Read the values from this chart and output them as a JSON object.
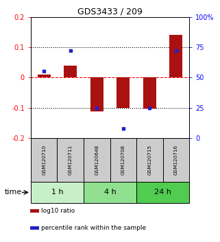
{
  "title": "GDS3433 / 209",
  "samples": [
    "GSM120710",
    "GSM120711",
    "GSM120648",
    "GSM120708",
    "GSM120715",
    "GSM120716"
  ],
  "log10_ratio": [
    0.01,
    0.04,
    -0.113,
    -0.1,
    -0.103,
    0.14
  ],
  "percentile_rank": [
    55,
    72,
    25,
    8,
    25,
    72
  ],
  "time_groups": [
    {
      "label": "1 h",
      "spans": [
        0,
        2
      ],
      "color": "#c8f0c8"
    },
    {
      "label": "4 h",
      "spans": [
        2,
        4
      ],
      "color": "#90e090"
    },
    {
      "label": "24 h",
      "spans": [
        4,
        6
      ],
      "color": "#50cc50"
    }
  ],
  "bar_color": "#aa1111",
  "dot_color": "#2222cc",
  "ylim_left": [
    -0.2,
    0.2
  ],
  "ylim_right": [
    0,
    100
  ],
  "yticks_left": [
    -0.2,
    -0.1,
    0.0,
    0.1,
    0.2
  ],
  "yticks_right": [
    0,
    25,
    50,
    75,
    100
  ],
  "ytick_labels_left": [
    "-0.2",
    "-0.1",
    "0",
    "0.1",
    "0.2"
  ],
  "ytick_labels_right": [
    "0",
    "25",
    "50",
    "75",
    "100%"
  ],
  "hlines": [
    0.1,
    -0.1
  ],
  "legend_items": [
    {
      "label": "log10 ratio",
      "color": "#aa1111"
    },
    {
      "label": "percentile rank within the sample",
      "color": "#2222cc"
    }
  ],
  "time_label": "time",
  "box_color": "#cccccc",
  "bar_width": 0.5
}
